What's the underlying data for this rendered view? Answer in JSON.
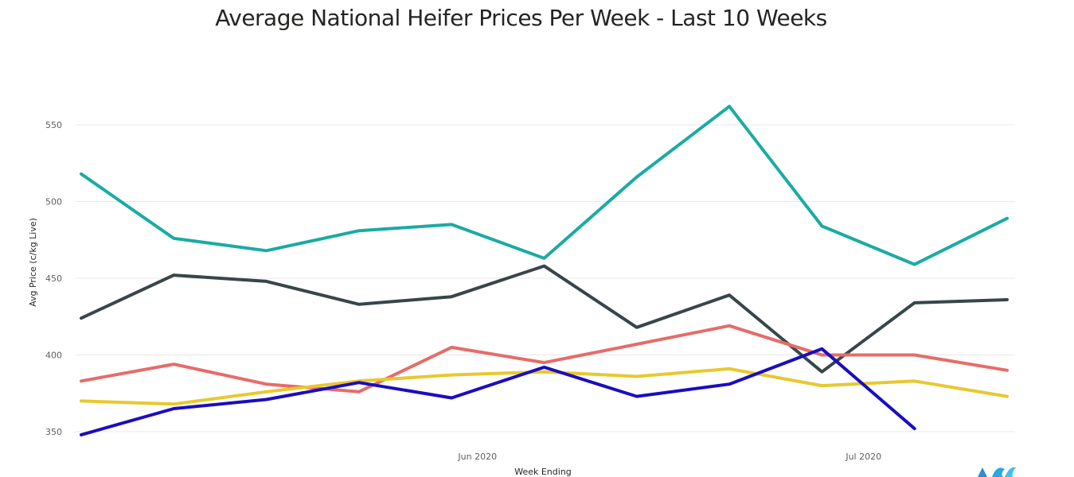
{
  "chart_data": {
    "type": "line",
    "title": "Average National Heifer Prices Per Week - Last 10 Weeks",
    "xlabel": "Week Ending",
    "ylabel": "Avg Price (c/kg Live)",
    "ylim": [
      345,
      570
    ],
    "yticks": [
      350,
      400,
      450,
      500,
      550
    ],
    "xticks": [
      {
        "label": "Jun 2020",
        "x": 5.28
      },
      {
        "label": "Jul 2020",
        "x": 9.45
      }
    ],
    "grid": true,
    "legend": "none",
    "x": [
      1,
      2,
      3,
      4,
      5,
      6,
      7,
      8,
      9,
      10,
      11
    ],
    "series": [
      {
        "color": "#1aaba3",
        "values": [
          518,
          476,
          468,
          481,
          485,
          463,
          516,
          562,
          484,
          459,
          489
        ]
      },
      {
        "color": "#374649",
        "values": [
          424,
          452,
          448,
          433,
          438,
          458,
          418,
          439,
          389,
          434,
          436
        ]
      },
      {
        "color": "#e66c68",
        "values": [
          383,
          394,
          381,
          376,
          405,
          395,
          407,
          419,
          400,
          400,
          390
        ]
      },
      {
        "color": "#e8c82e",
        "values": [
          370,
          368,
          376,
          383,
          387,
          389,
          386,
          391,
          380,
          383,
          373
        ]
      },
      {
        "color": "#1a0dbf",
        "values": [
          348,
          365,
          371,
          382,
          372,
          392,
          373,
          381,
          404,
          352,
          null
        ]
      }
    ]
  }
}
